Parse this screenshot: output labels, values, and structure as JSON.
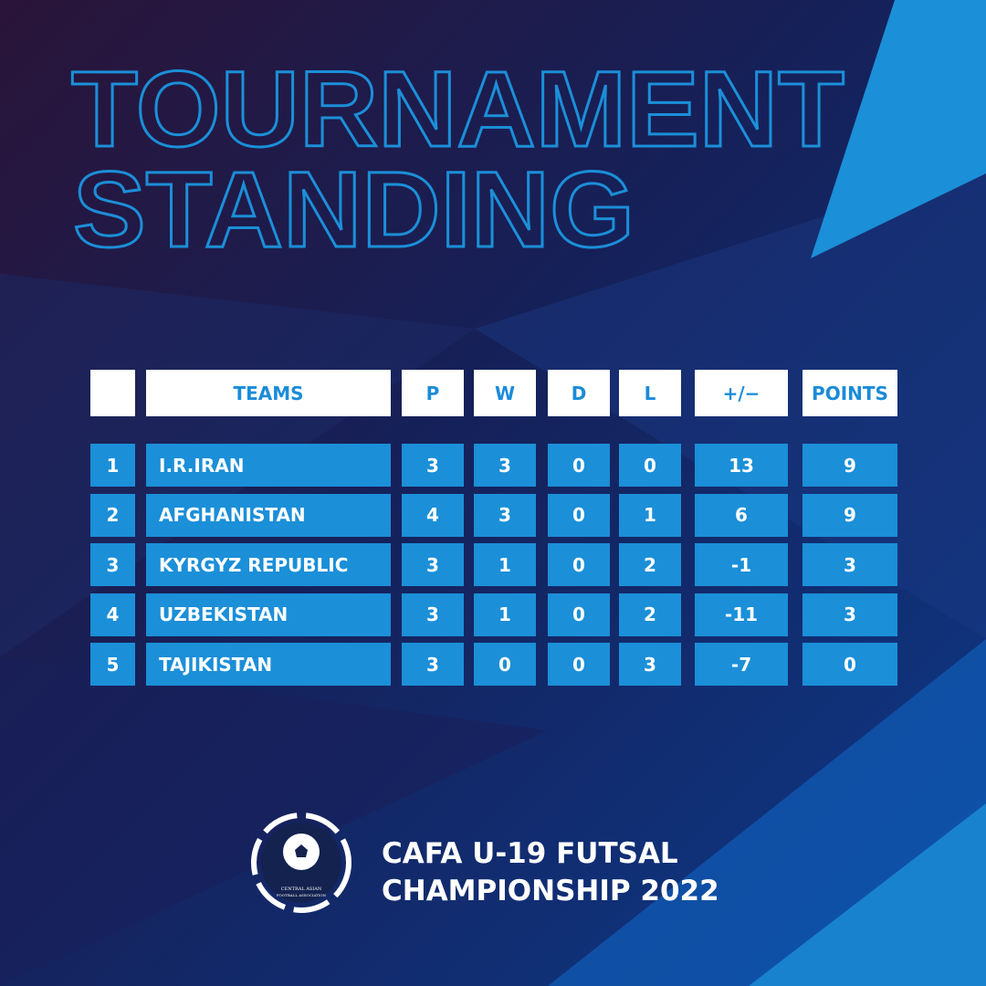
{
  "title": [
    "TOURNAMENT",
    "STANDING"
  ],
  "table": {
    "header": [
      "TEAMS",
      "P",
      "W",
      "D",
      "L",
      "+/−",
      "POINTS"
    ],
    "rows": [
      [
        1,
        "I.R.IRAN",
        3,
        3,
        0,
        0,
        13,
        9
      ],
      [
        2,
        "AFGHANISTAN",
        4,
        3,
        0,
        1,
        6,
        9
      ],
      [
        3,
        "KYRGYZ REPUBLIC",
        3,
        1,
        0,
        2,
        -1,
        3
      ],
      [
        4,
        "UZBEKISTAN",
        3,
        1,
        0,
        2,
        -11,
        3
      ],
      [
        5,
        "TAJIKISTAN",
        3,
        0,
        0,
        3,
        -7,
        0
      ]
    ]
  },
  "logo": {
    "lines": [
      "CENTRAL ASIAN",
      "FOOTBALL ASSOCIATION"
    ]
  },
  "footer": {
    "lines": [
      "CAFA U-19 FUTSAL",
      "CHAMPIONSHIP 2022"
    ]
  }
}
